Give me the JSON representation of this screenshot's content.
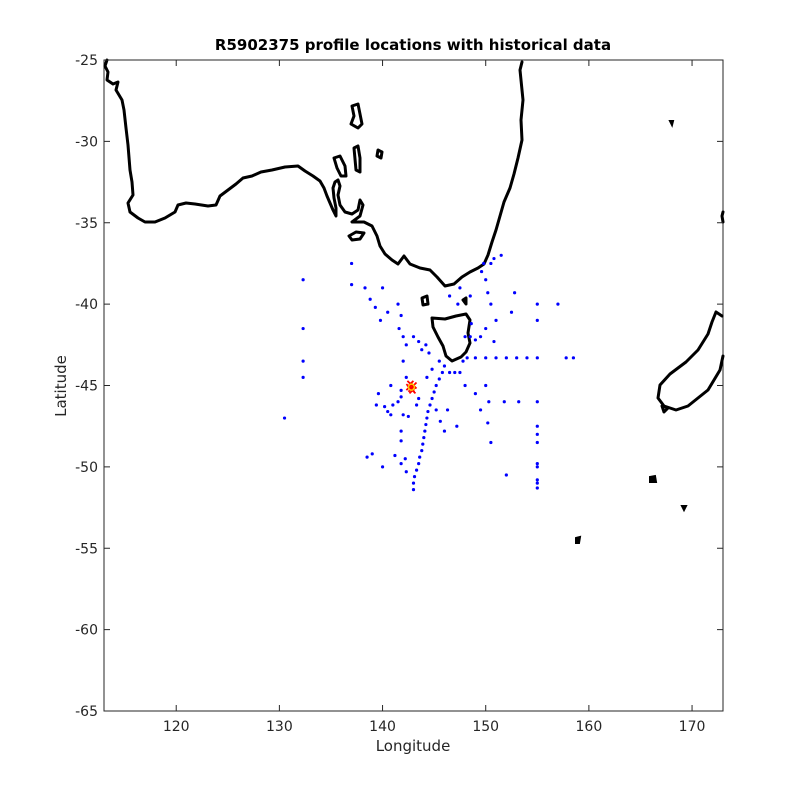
{
  "chart_data": {
    "type": "scatter",
    "title": "R5902375 profile locations with historical data",
    "xlabel": "Longitude",
    "ylabel": "Latitude",
    "xlim": [
      113,
      173
    ],
    "ylim": [
      -65,
      -25
    ],
    "xticks": [
      120,
      130,
      140,
      150,
      160,
      170
    ],
    "yticks": [
      -25,
      -30,
      -35,
      -40,
      -45,
      -50,
      -55,
      -60,
      -65
    ],
    "grid": false,
    "series": [
      {
        "color": "#0000ff",
        "marker": "dot",
        "points": [
          [
            132.3,
            -38.5
          ],
          [
            132.3,
            -41.5
          ],
          [
            132.3,
            -43.5
          ],
          [
            132.3,
            -44.5
          ],
          [
            130.5,
            -47.0
          ],
          [
            137.0,
            -37.5
          ],
          [
            137.0,
            -38.8
          ],
          [
            138.3,
            -39.0
          ],
          [
            138.8,
            -39.7
          ],
          [
            139.3,
            -40.2
          ],
          [
            140.0,
            -39.0
          ],
          [
            139.8,
            -41.0
          ],
          [
            140.5,
            -40.5
          ],
          [
            141.5,
            -40.0
          ],
          [
            141.8,
            -40.7
          ],
          [
            141.6,
            -41.5
          ],
          [
            142.0,
            -42.0
          ],
          [
            142.3,
            -42.5
          ],
          [
            143.0,
            -42.0
          ],
          [
            143.5,
            -42.3
          ],
          [
            143.8,
            -42.8
          ],
          [
            144.2,
            -42.5
          ],
          [
            144.5,
            -43.0
          ],
          [
            142.0,
            -43.5
          ],
          [
            142.3,
            -44.5
          ],
          [
            141.8,
            -45.3
          ],
          [
            140.8,
            -45.0
          ],
          [
            139.6,
            -45.5
          ],
          [
            139.4,
            -46.2
          ],
          [
            140.2,
            -46.3
          ],
          [
            140.5,
            -46.6
          ],
          [
            140.8,
            -46.8
          ],
          [
            141.0,
            -46.2
          ],
          [
            141.5,
            -46.0
          ],
          [
            141.8,
            -45.7
          ],
          [
            142.0,
            -46.8
          ],
          [
            142.5,
            -46.9
          ],
          [
            141.8,
            -47.8
          ],
          [
            141.8,
            -48.4
          ],
          [
            141.2,
            -49.3
          ],
          [
            141.8,
            -49.8
          ],
          [
            140.0,
            -50.0
          ],
          [
            139.0,
            -49.2
          ],
          [
            138.5,
            -49.4
          ],
          [
            142.2,
            -49.5
          ],
          [
            142.3,
            -50.3
          ],
          [
            143.0,
            -51.4
          ],
          [
            143.0,
            -51.0
          ],
          [
            143.1,
            -50.6
          ],
          [
            143.3,
            -50.2
          ],
          [
            143.5,
            -49.8
          ],
          [
            143.6,
            -49.4
          ],
          [
            143.8,
            -49.0
          ],
          [
            143.9,
            -48.6
          ],
          [
            144.0,
            -48.2
          ],
          [
            144.1,
            -47.8
          ],
          [
            144.2,
            -47.4
          ],
          [
            144.3,
            -47.0
          ],
          [
            144.4,
            -46.6
          ],
          [
            144.6,
            -46.2
          ],
          [
            144.8,
            -45.8
          ],
          [
            145.0,
            -45.4
          ],
          [
            145.2,
            -45.0
          ],
          [
            145.5,
            -44.6
          ],
          [
            145.8,
            -44.2
          ],
          [
            146.0,
            -43.8
          ],
          [
            144.3,
            -44.5
          ],
          [
            145.2,
            -46.5
          ],
          [
            145.6,
            -47.2
          ],
          [
            146.0,
            -47.8
          ],
          [
            143.5,
            -45.8
          ],
          [
            143.3,
            -46.2
          ],
          [
            146.5,
            -44.2
          ],
          [
            147.0,
            -44.2
          ],
          [
            147.5,
            -44.2
          ],
          [
            147.8,
            -43.5
          ],
          [
            148.2,
            -43.3
          ],
          [
            149.0,
            -43.3
          ],
          [
            150.0,
            -43.3
          ],
          [
            151.0,
            -43.3
          ],
          [
            152.0,
            -43.3
          ],
          [
            153.0,
            -43.3
          ],
          [
            154.0,
            -43.3
          ],
          [
            155.0,
            -43.3
          ],
          [
            157.8,
            -43.3
          ],
          [
            158.5,
            -43.3
          ],
          [
            148.0,
            -42.0
          ],
          [
            148.5,
            -42.0
          ],
          [
            149.0,
            -42.2
          ],
          [
            149.5,
            -42.0
          ],
          [
            148.6,
            -41.2
          ],
          [
            150.0,
            -41.5
          ],
          [
            150.8,
            -42.3
          ],
          [
            151.0,
            -41.0
          ],
          [
            150.5,
            -40.0
          ],
          [
            150.2,
            -39.3
          ],
          [
            150.0,
            -38.5
          ],
          [
            150.5,
            -37.5
          ],
          [
            150.8,
            -37.2
          ],
          [
            151.5,
            -37.0
          ],
          [
            149.6,
            -38.0
          ],
          [
            149.8,
            -37.5
          ],
          [
            148.5,
            -39.5
          ],
          [
            147.5,
            -39.0
          ],
          [
            146.5,
            -39.5
          ],
          [
            147.3,
            -40.0
          ],
          [
            145.5,
            -43.5
          ],
          [
            144.8,
            -44.0
          ],
          [
            146.3,
            -46.5
          ],
          [
            147.2,
            -47.5
          ],
          [
            148.0,
            -45.0
          ],
          [
            149.0,
            -45.5
          ],
          [
            149.5,
            -46.5
          ],
          [
            150.2,
            -47.3
          ],
          [
            150.5,
            -48.5
          ],
          [
            150.3,
            -46.0
          ],
          [
            150.0,
            -45.0
          ],
          [
            151.8,
            -46.0
          ],
          [
            152.0,
            -50.5
          ],
          [
            153.2,
            -46.0
          ],
          [
            152.5,
            -40.5
          ],
          [
            152.8,
            -39.3
          ],
          [
            155.0,
            -40.0
          ],
          [
            155.0,
            -41.0
          ],
          [
            157.0,
            -40.0
          ],
          [
            155.0,
            -46.0
          ],
          [
            155.0,
            -47.5
          ],
          [
            155.0,
            -48.0
          ],
          [
            155.0,
            -48.5
          ],
          [
            155.0,
            -49.8
          ],
          [
            155.0,
            -50.0
          ],
          [
            155.0,
            -50.8
          ],
          [
            155.0,
            -51.0
          ],
          [
            155.0,
            -51.3
          ]
        ]
      },
      {
        "color": "#ff0000",
        "marker": "x",
        "points": [
          [
            142.7,
            -44.9
          ],
          [
            142.8,
            -45.2
          ],
          [
            143.0,
            -45.0
          ],
          [
            142.9,
            -45.3
          ],
          [
            142.6,
            -45.1
          ]
        ]
      },
      {
        "color": "#ffcc00",
        "marker": "circle",
        "points": [
          [
            142.8,
            -45.1
          ]
        ]
      }
    ]
  }
}
